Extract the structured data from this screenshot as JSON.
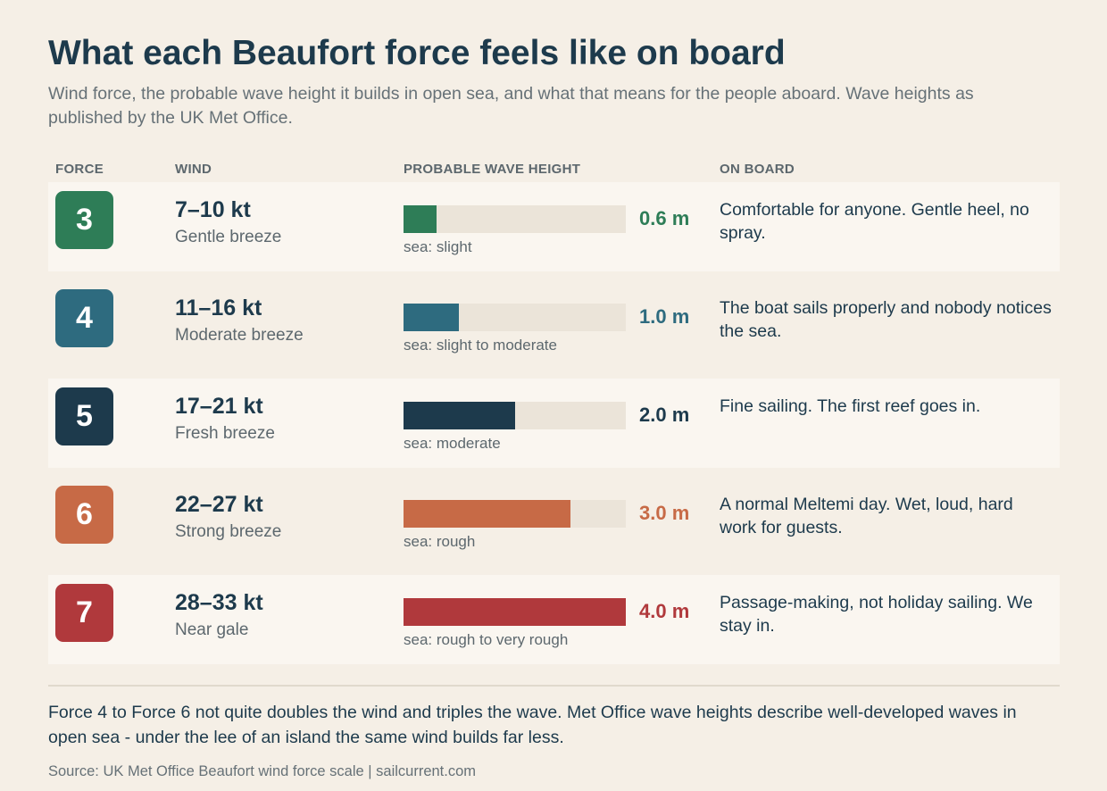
{
  "title": "What each Beaufort force feels like on board",
  "subtitle": "Wind force, the probable wave height it builds in open sea, and what that means for the people aboard. Wave heights as published by the UK Met Office.",
  "columns": {
    "force": "FORCE",
    "wind": "WIND",
    "wave": "PROBABLE WAVE HEIGHT",
    "board": "ON BOARD"
  },
  "chart_data": {
    "type": "bar",
    "title": "What each Beaufort force feels like on board",
    "xlabel": "FORCE",
    "ylabel": "PROBABLE WAVE HEIGHT",
    "categories": [
      "3",
      "4",
      "5",
      "6",
      "7"
    ],
    "values": [
      0.6,
      1.0,
      2.0,
      3.0,
      4.0
    ],
    "unit": "m",
    "ylim": [
      0,
      4.0
    ],
    "orientation": "horizontal",
    "grid": false,
    "rows": [
      {
        "force": "3",
        "wind": "7–10 kt",
        "name": "Gentle breeze",
        "wave": 0.6,
        "wave_label": "0.6 m",
        "sea": "sea: slight",
        "board": "Comfortable for anyone. Gentle heel, no spray.",
        "color": "#2e7d57"
      },
      {
        "force": "4",
        "wind": "11–16 kt",
        "name": "Moderate breeze",
        "wave": 1.0,
        "wave_label": "1.0 m",
        "sea": "sea: slight to moderate",
        "board": "The boat sails properly and nobody notices the sea.",
        "color": "#2e6b7f"
      },
      {
        "force": "5",
        "wind": "17–21 kt",
        "name": "Fresh breeze",
        "wave": 2.0,
        "wave_label": "2.0 m",
        "sea": "sea: moderate",
        "board": "Fine sailing. The first reef goes in.",
        "color": "#1d3a4c"
      },
      {
        "force": "6",
        "wind": "22–27 kt",
        "name": "Strong breeze",
        "wave": 3.0,
        "wave_label": "3.0 m",
        "sea": "sea: rough",
        "board": "A normal Meltemi day. Wet, loud, hard work for guests.",
        "color": "#c76a46"
      },
      {
        "force": "7",
        "wind": "28–33 kt",
        "name": "Near gale",
        "wave": 4.0,
        "wave_label": "4.0 m",
        "sea": "sea: rough to very rough",
        "board": "Passage-making, not holiday sailing. We stay in.",
        "color": "#b0393c"
      }
    ]
  },
  "note": "Force 4 to Force 6 not quite doubles the wind and triples the wave. Met Office wave heights describe well-developed waves in open sea - under the lee of an island the same wind builds far less.",
  "source": "Source: UK Met Office Beaufort wind force scale  |  sailcurrent.com"
}
